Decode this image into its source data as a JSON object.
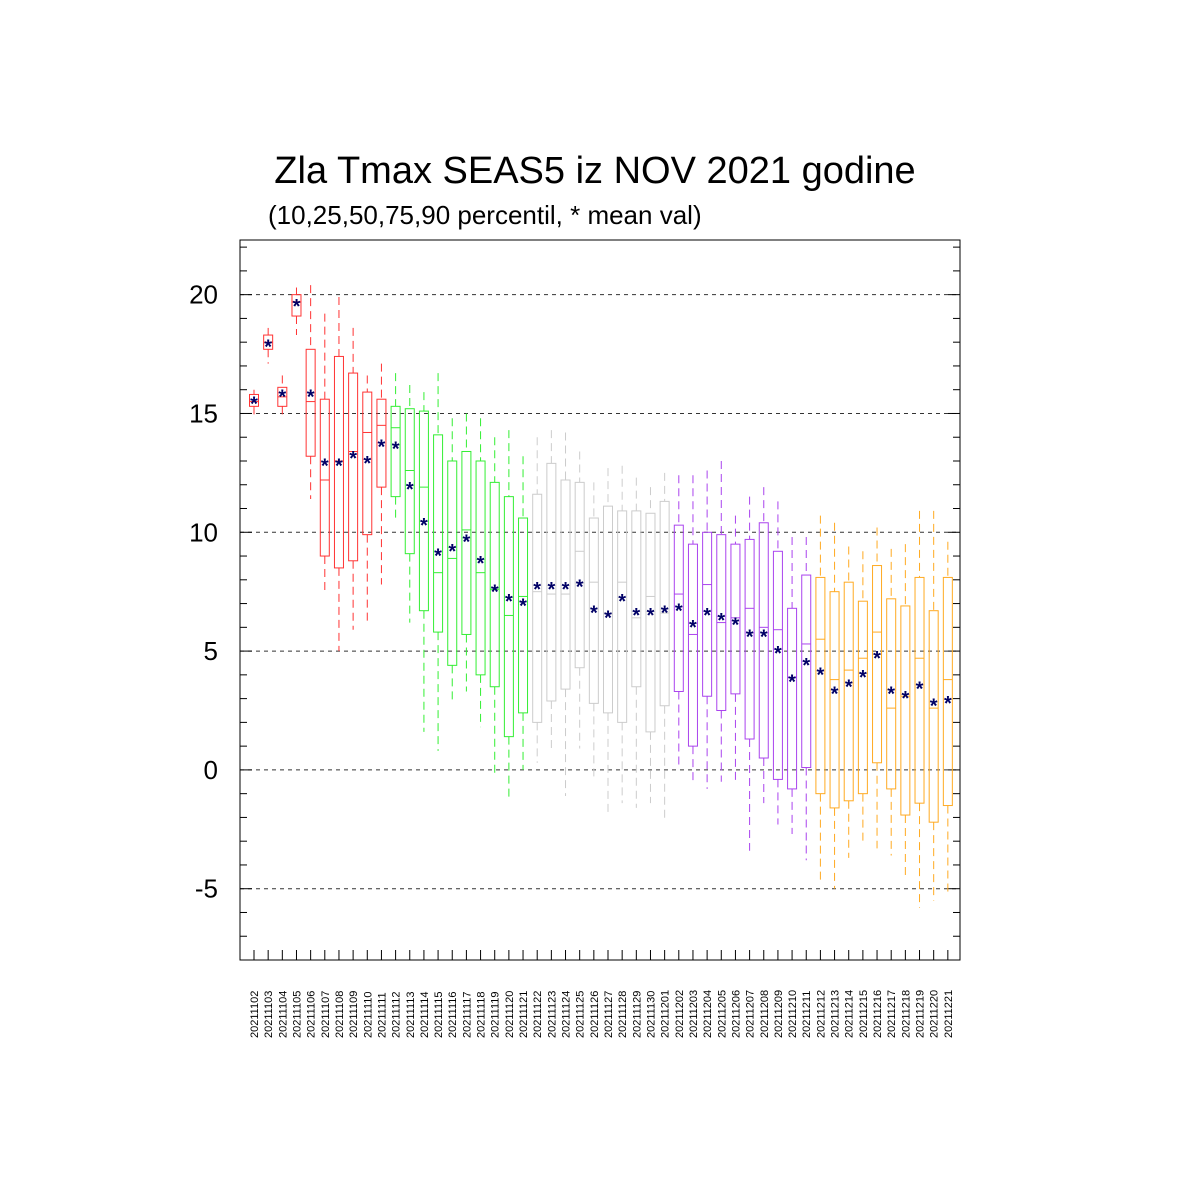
{
  "title": "Zla Tmax SEAS5 iz NOV 2021 godine",
  "subtitle": "(10,25,50,75,90 percentil, * mean val)",
  "chart_data": {
    "type": "box",
    "ylim": [
      -8.0,
      22.3
    ],
    "grid": "horizontal dashed at 20, 15, 10, 5, 0, -5",
    "yticks": [
      20,
      15,
      10,
      5,
      0,
      -5
    ],
    "ytick_labels": [
      "20",
      "15",
      "10",
      "5",
      "0",
      "-5"
    ],
    "mean_marker": "*",
    "mean_color": "#000066",
    "group_colors": {
      "red": "#ff3333",
      "green": "#33ee33",
      "gray": "#cccccc",
      "purple": "#aa44ee",
      "orange": "#ffaa22"
    },
    "boxes": [
      {
        "date": "20211102",
        "p10": 14.9,
        "p25": 15.3,
        "p50": 15.5,
        "p75": 15.8,
        "p90": 16.0,
        "mean": 15.5,
        "group": "red"
      },
      {
        "date": "20211103",
        "p10": 17.1,
        "p25": 17.7,
        "p50": 18.0,
        "p75": 18.3,
        "p90": 18.6,
        "mean": 17.9,
        "group": "red"
      },
      {
        "date": "20211104",
        "p10": 14.9,
        "p25": 15.3,
        "p50": 15.7,
        "p75": 16.1,
        "p90": 16.6,
        "mean": 15.8,
        "group": "red"
      },
      {
        "date": "20211105",
        "p10": 18.3,
        "p25": 19.1,
        "p50": 19.7,
        "p75": 20.0,
        "p90": 20.3,
        "mean": 19.6,
        "group": "red"
      },
      {
        "date": "20211106",
        "p10": 11.4,
        "p25": 13.2,
        "p50": 15.5,
        "p75": 17.7,
        "p90": 20.4,
        "mean": 15.8,
        "group": "red"
      },
      {
        "date": "20211107",
        "p10": 7.4,
        "p25": 9.0,
        "p50": 12.2,
        "p75": 15.6,
        "p90": 19.2,
        "mean": 12.9,
        "group": "red"
      },
      {
        "date": "20211108",
        "p10": 5.0,
        "p25": 8.5,
        "p50": 13.0,
        "p75": 17.4,
        "p90": 19.9,
        "mean": 12.9,
        "group": "red"
      },
      {
        "date": "20211109",
        "p10": 5.9,
        "p25": 8.8,
        "p50": 13.4,
        "p75": 16.7,
        "p90": 18.6,
        "mean": 13.2,
        "group": "red"
      },
      {
        "date": "20211110",
        "p10": 6.1,
        "p25": 9.9,
        "p50": 14.2,
        "p75": 15.9,
        "p90": 16.6,
        "mean": 13.0,
        "group": "red"
      },
      {
        "date": "20211111",
        "p10": 7.8,
        "p25": 11.9,
        "p50": 14.5,
        "p75": 15.6,
        "p90": 17.1,
        "mean": 13.7,
        "group": "red"
      },
      {
        "date": "20211112",
        "p10": 10.5,
        "p25": 11.5,
        "p50": 14.4,
        "p75": 15.3,
        "p90": 16.7,
        "mean": 13.6,
        "group": "green"
      },
      {
        "date": "20211113",
        "p10": 6.2,
        "p25": 9.1,
        "p50": 12.6,
        "p75": 15.2,
        "p90": 16.2,
        "mean": 11.9,
        "group": "green"
      },
      {
        "date": "20211114",
        "p10": 1.6,
        "p25": 6.7,
        "p50": 11.9,
        "p75": 15.1,
        "p90": 15.9,
        "mean": 10.4,
        "group": "green"
      },
      {
        "date": "20211115",
        "p10": 0.8,
        "p25": 5.8,
        "p50": 8.3,
        "p75": 14.1,
        "p90": 16.7,
        "mean": 9.1,
        "group": "green"
      },
      {
        "date": "20211116",
        "p10": 2.9,
        "p25": 4.4,
        "p50": 8.9,
        "p75": 13.0,
        "p90": 14.8,
        "mean": 9.3,
        "group": "green"
      },
      {
        "date": "20211117",
        "p10": 3.3,
        "p25": 5.7,
        "p50": 10.1,
        "p75": 13.4,
        "p90": 15.0,
        "mean": 9.7,
        "group": "green"
      },
      {
        "date": "20211118",
        "p10": 1.8,
        "p25": 4.0,
        "p50": 8.3,
        "p75": 13.0,
        "p90": 14.8,
        "mean": 8.8,
        "group": "green"
      },
      {
        "date": "20211119",
        "p10": -0.2,
        "p25": 3.5,
        "p50": 7.6,
        "p75": 12.1,
        "p90": 14.0,
        "mean": 7.6,
        "group": "green"
      },
      {
        "date": "20211120",
        "p10": -1.2,
        "p25": 1.4,
        "p50": 6.5,
        "p75": 11.5,
        "p90": 14.3,
        "mean": 7.2,
        "group": "green"
      },
      {
        "date": "20211121",
        "p10": 0.0,
        "p25": 2.4,
        "p50": 7.3,
        "p75": 10.6,
        "p90": 13.2,
        "mean": 7.0,
        "group": "green"
      },
      {
        "date": "20211122",
        "p10": 0.3,
        "p25": 2.0,
        "p50": 7.5,
        "p75": 11.6,
        "p90": 14.0,
        "mean": 7.7,
        "group": "gray"
      },
      {
        "date": "20211123",
        "p10": 0.8,
        "p25": 2.9,
        "p50": 7.4,
        "p75": 12.9,
        "p90": 14.3,
        "mean": 7.7,
        "group": "gray"
      },
      {
        "date": "20211124",
        "p10": -1.1,
        "p25": 3.4,
        "p50": 7.4,
        "p75": 12.2,
        "p90": 14.2,
        "mean": 7.7,
        "group": "gray"
      },
      {
        "date": "20211125",
        "p10": 0.9,
        "p25": 4.3,
        "p50": 9.2,
        "p75": 12.1,
        "p90": 13.4,
        "mean": 7.8,
        "group": "gray"
      },
      {
        "date": "20211126",
        "p10": -0.3,
        "p25": 2.8,
        "p50": 7.9,
        "p75": 10.6,
        "p90": 12.1,
        "mean": 6.7,
        "group": "gray"
      },
      {
        "date": "20211127",
        "p10": -1.8,
        "p25": 2.4,
        "p50": 6.6,
        "p75": 11.1,
        "p90": 12.7,
        "mean": 6.5,
        "group": "gray"
      },
      {
        "date": "20211128",
        "p10": -1.4,
        "p25": 2.0,
        "p50": 7.9,
        "p75": 10.9,
        "p90": 12.8,
        "mean": 7.2,
        "group": "gray"
      },
      {
        "date": "20211129",
        "p10": -1.6,
        "p25": 3.5,
        "p50": 6.4,
        "p75": 10.9,
        "p90": 12.3,
        "mean": 6.6,
        "group": "gray"
      },
      {
        "date": "20211130",
        "p10": -1.4,
        "p25": 1.6,
        "p50": 7.3,
        "p75": 10.8,
        "p90": 11.9,
        "mean": 6.6,
        "group": "gray"
      },
      {
        "date": "20211201",
        "p10": -2.1,
        "p25": 2.7,
        "p50": 6.6,
        "p75": 11.3,
        "p90": 12.5,
        "mean": 6.7,
        "group": "gray"
      },
      {
        "date": "20211202",
        "p10": 0.1,
        "p25": 3.3,
        "p50": 7.4,
        "p75": 10.3,
        "p90": 12.4,
        "mean": 6.8,
        "group": "purple"
      },
      {
        "date": "20211203",
        "p10": -0.6,
        "p25": 1.0,
        "p50": 5.7,
        "p75": 9.5,
        "p90": 12.4,
        "mean": 6.1,
        "group": "purple"
      },
      {
        "date": "20211204",
        "p10": -0.8,
        "p25": 3.1,
        "p50": 7.8,
        "p75": 10.0,
        "p90": 12.6,
        "mean": 6.6,
        "group": "purple"
      },
      {
        "date": "20211205",
        "p10": -0.5,
        "p25": 2.5,
        "p50": 6.2,
        "p75": 9.9,
        "p90": 13.0,
        "mean": 6.4,
        "group": "purple"
      },
      {
        "date": "20211206",
        "p10": -0.6,
        "p25": 3.2,
        "p50": 6.4,
        "p75": 9.5,
        "p90": 10.7,
        "mean": 6.2,
        "group": "purple"
      },
      {
        "date": "20211207",
        "p10": -3.4,
        "p25": 1.3,
        "p50": 6.8,
        "p75": 9.7,
        "p90": 11.5,
        "mean": 5.7,
        "group": "purple"
      },
      {
        "date": "20211208",
        "p10": -1.4,
        "p25": 0.5,
        "p50": 6.0,
        "p75": 10.4,
        "p90": 11.9,
        "mean": 5.7,
        "group": "purple"
      },
      {
        "date": "20211209",
        "p10": -2.3,
        "p25": -0.4,
        "p50": 5.9,
        "p75": 9.2,
        "p90": 11.3,
        "mean": 5.0,
        "group": "purple"
      },
      {
        "date": "20211210",
        "p10": -2.7,
        "p25": -0.8,
        "p50": 3.9,
        "p75": 6.8,
        "p90": 9.8,
        "mean": 3.8,
        "group": "purple"
      },
      {
        "date": "20211211",
        "p10": -3.8,
        "p25": 0.1,
        "p50": 5.3,
        "p75": 8.2,
        "p90": 9.8,
        "mean": 4.5,
        "group": "purple"
      },
      {
        "date": "20211212",
        "p10": -4.8,
        "p25": -1.0,
        "p50": 5.5,
        "p75": 8.1,
        "p90": 10.7,
        "mean": 4.1,
        "group": "orange"
      },
      {
        "date": "20211213",
        "p10": -5.0,
        "p25": -1.6,
        "p50": 3.8,
        "p75": 7.5,
        "p90": 10.4,
        "mean": 3.3,
        "group": "orange"
      },
      {
        "date": "20211214",
        "p10": -3.7,
        "p25": -1.3,
        "p50": 4.2,
        "p75": 7.9,
        "p90": 9.4,
        "mean": 3.6,
        "group": "orange"
      },
      {
        "date": "20211215",
        "p10": -3.0,
        "p25": -1.0,
        "p50": 4.7,
        "p75": 7.1,
        "p90": 9.2,
        "mean": 4.0,
        "group": "orange"
      },
      {
        "date": "20211216",
        "p10": -3.3,
        "p25": 0.3,
        "p50": 5.8,
        "p75": 8.6,
        "p90": 10.2,
        "mean": 4.8,
        "group": "orange"
      },
      {
        "date": "20211217",
        "p10": -3.6,
        "p25": -0.8,
        "p50": 2.6,
        "p75": 7.2,
        "p90": 9.3,
        "mean": 3.3,
        "group": "orange"
      },
      {
        "date": "20211218",
        "p10": -4.6,
        "p25": -1.9,
        "p50": 3.1,
        "p75": 6.9,
        "p90": 9.5,
        "mean": 3.1,
        "group": "orange"
      },
      {
        "date": "20211219",
        "p10": -5.8,
        "p25": -1.4,
        "p50": 4.7,
        "p75": 8.1,
        "p90": 10.9,
        "mean": 3.5,
        "group": "orange"
      },
      {
        "date": "20211220",
        "p10": -5.5,
        "p25": -2.2,
        "p50": 2.6,
        "p75": 6.7,
        "p90": 10.9,
        "mean": 2.8,
        "group": "orange"
      },
      {
        "date": "20211221",
        "p10": -5.3,
        "p25": -1.5,
        "p50": 3.8,
        "p75": 8.1,
        "p90": 9.6,
        "mean": 2.9,
        "group": "orange"
      }
    ]
  }
}
